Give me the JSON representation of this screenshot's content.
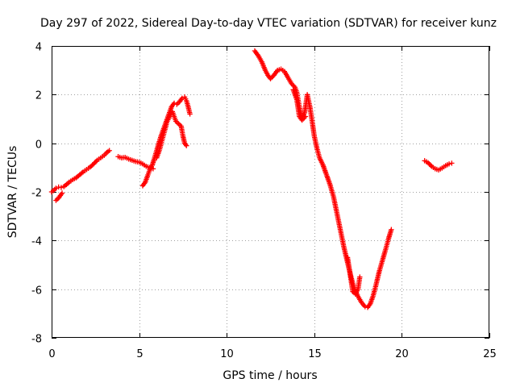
{
  "chart_data": {
    "type": "scatter",
    "title": "Day 297 of 2022, Sidereal Day-to-day VTEC variation (SDTVAR) for receiver kunz",
    "xlabel": "GPS time / hours",
    "ylabel": "SDTVAR / TECUs",
    "xlim": [
      0,
      25
    ],
    "ylim": [
      -8,
      4
    ],
    "xticks": [
      0,
      5,
      10,
      15,
      20,
      25
    ],
    "yticks": [
      -8,
      -6,
      -4,
      -2,
      0,
      2,
      4
    ],
    "xtick_labels": [
      "0",
      "5",
      "10",
      "15",
      "20",
      "25"
    ],
    "ytick_labels": [
      "-8",
      "-6",
      "-4",
      "-2",
      "0",
      "2",
      "4"
    ],
    "grid": true,
    "marker": "plus",
    "marker_color": "#ff0000",
    "series": [
      {
        "segments": [
          [
            [
              0.0,
              -2.0
            ],
            [
              0.1,
              -1.95
            ],
            [
              0.25,
              -1.85
            ],
            [
              0.4,
              -1.8
            ],
            [
              0.55,
              -1.82
            ],
            [
              0.7,
              -1.78
            ],
            [
              0.85,
              -1.7
            ],
            [
              1.0,
              -1.6
            ],
            [
              1.2,
              -1.5
            ],
            [
              1.4,
              -1.42
            ],
            [
              1.6,
              -1.3
            ],
            [
              1.8,
              -1.18
            ],
            [
              2.0,
              -1.08
            ],
            [
              2.2,
              -0.98
            ],
            [
              2.4,
              -0.85
            ],
            [
              2.6,
              -0.7
            ],
            [
              2.8,
              -0.6
            ],
            [
              3.0,
              -0.5
            ],
            [
              3.15,
              -0.38
            ],
            [
              3.3,
              -0.3
            ]
          ],
          [
            [
              0.25,
              -2.35
            ],
            [
              0.4,
              -2.25
            ],
            [
              0.5,
              -2.15
            ],
            [
              0.6,
              -2.05
            ]
          ],
          [
            [
              3.8,
              -0.55
            ],
            [
              4.0,
              -0.6
            ],
            [
              4.2,
              -0.58
            ],
            [
              4.4,
              -0.65
            ],
            [
              4.6,
              -0.7
            ],
            [
              4.8,
              -0.75
            ],
            [
              5.0,
              -0.78
            ],
            [
              5.2,
              -0.85
            ],
            [
              5.4,
              -0.95
            ],
            [
              5.6,
              -1.0
            ],
            [
              5.8,
              -1.05
            ]
          ],
          [
            [
              5.2,
              -1.75
            ],
            [
              5.35,
              -1.6
            ],
            [
              5.5,
              -1.3
            ],
            [
              5.6,
              -1.1
            ],
            [
              5.75,
              -0.9
            ],
            [
              5.9,
              -0.55
            ],
            [
              6.0,
              -0.3
            ],
            [
              6.1,
              -0.05
            ],
            [
              6.25,
              0.3
            ],
            [
              6.4,
              0.6
            ],
            [
              6.55,
              0.9
            ],
            [
              6.7,
              1.2
            ],
            [
              6.85,
              1.5
            ],
            [
              7.0,
              1.65
            ],
            [
              7.15,
              1.6
            ],
            [
              7.3,
              1.7
            ],
            [
              7.45,
              1.85
            ],
            [
              7.6,
              1.9
            ],
            [
              7.7,
              1.75
            ],
            [
              7.8,
              1.5
            ],
            [
              7.9,
              1.2
            ]
          ],
          [
            [
              6.0,
              -0.6
            ],
            [
              6.15,
              -0.3
            ],
            [
              6.3,
              0.1
            ],
            [
              6.45,
              0.5
            ],
            [
              6.6,
              0.9
            ],
            [
              6.75,
              1.1
            ],
            [
              6.9,
              1.3
            ],
            [
              7.0,
              1.1
            ],
            [
              7.1,
              0.9
            ],
            [
              7.25,
              0.8
            ],
            [
              7.4,
              0.7
            ],
            [
              7.5,
              0.3
            ],
            [
              7.6,
              0.0
            ],
            [
              7.7,
              -0.1
            ]
          ],
          [
            [
              11.6,
              3.8
            ],
            [
              11.8,
              3.6
            ],
            [
              12.0,
              3.35
            ],
            [
              12.2,
              3.0
            ],
            [
              12.35,
              2.8
            ],
            [
              12.5,
              2.65
            ],
            [
              12.7,
              2.8
            ],
            [
              12.9,
              3.0
            ],
            [
              13.1,
              3.05
            ],
            [
              13.3,
              2.95
            ],
            [
              13.5,
              2.7
            ],
            [
              13.7,
              2.45
            ],
            [
              13.9,
              2.3
            ],
            [
              14.0,
              2.1
            ],
            [
              14.1,
              1.7
            ],
            [
              14.2,
              1.3
            ],
            [
              14.3,
              1.05
            ],
            [
              14.45,
              1.25
            ],
            [
              14.6,
              2.0
            ],
            [
              14.75,
              1.5
            ],
            [
              14.9,
              0.8
            ],
            [
              15.0,
              0.3
            ],
            [
              15.15,
              -0.2
            ],
            [
              15.3,
              -0.6
            ],
            [
              15.5,
              -0.9
            ],
            [
              15.7,
              -1.3
            ],
            [
              15.9,
              -1.7
            ],
            [
              16.1,
              -2.2
            ],
            [
              16.3,
              -2.9
            ],
            [
              16.5,
              -3.6
            ],
            [
              16.7,
              -4.3
            ],
            [
              16.9,
              -4.9
            ],
            [
              17.1,
              -5.5
            ],
            [
              17.3,
              -6.0
            ],
            [
              17.5,
              -6.3
            ],
            [
              17.7,
              -6.55
            ],
            [
              17.9,
              -6.72
            ],
            [
              18.05,
              -6.75
            ],
            [
              18.2,
              -6.6
            ],
            [
              18.35,
              -6.3
            ],
            [
              18.5,
              -5.9
            ],
            [
              18.7,
              -5.3
            ],
            [
              18.9,
              -4.8
            ],
            [
              19.1,
              -4.3
            ],
            [
              19.25,
              -3.9
            ],
            [
              19.4,
              -3.55
            ]
          ],
          [
            [
              13.8,
              2.2
            ],
            [
              14.0,
              1.8
            ],
            [
              14.15,
              1.1
            ],
            [
              14.3,
              0.95
            ],
            [
              14.5,
              1.1
            ]
          ],
          [
            [
              16.9,
              -4.7
            ],
            [
              17.05,
              -5.4
            ],
            [
              17.2,
              -6.1
            ],
            [
              17.35,
              -6.2
            ],
            [
              17.5,
              -6.0
            ],
            [
              17.6,
              -5.5
            ]
          ],
          [
            [
              21.3,
              -0.72
            ],
            [
              21.5,
              -0.8
            ],
            [
              21.7,
              -0.95
            ],
            [
              21.9,
              -1.05
            ],
            [
              22.1,
              -1.1
            ],
            [
              22.3,
              -1.02
            ],
            [
              22.5,
              -0.92
            ],
            [
              22.7,
              -0.85
            ],
            [
              22.85,
              -0.82
            ]
          ]
        ]
      }
    ]
  }
}
